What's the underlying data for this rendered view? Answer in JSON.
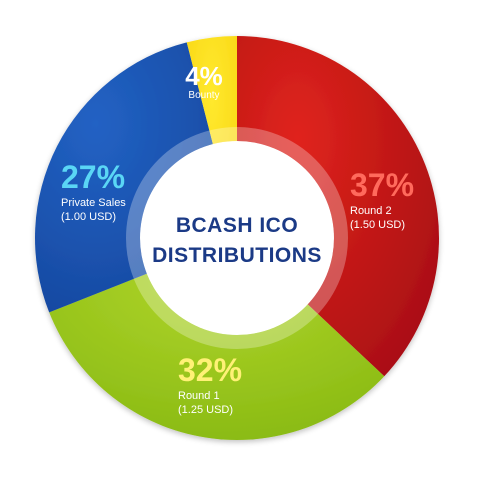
{
  "chart_data": {
    "type": "pie",
    "title": "BCASH ICO DISTRIBUTIONS",
    "title_lines": [
      "BCASH ICO",
      "DISTRIBUTIONS"
    ],
    "slices": [
      {
        "name": "Round 2",
        "value": 37,
        "percent_label": "37%",
        "sub_label": "(1.50 USD)",
        "color": "#c0131a",
        "pct_color": "#ff6a5c",
        "text_color": "#ffffff"
      },
      {
        "name": "Round 1",
        "value": 32,
        "percent_label": "32%",
        "sub_label": "(1.25 USD)",
        "color": "#95c81a",
        "pct_color": "#fff176",
        "text_color": "#ffffff"
      },
      {
        "name": "Private Sales",
        "value": 27,
        "percent_label": "27%",
        "sub_label": "(1.00 USD)",
        "color": "#1a52b2",
        "pct_color": "#5ad6f5",
        "text_color": "#ffffff"
      },
      {
        "name": "Bounty",
        "value": 4,
        "percent_label": "4%",
        "sub_label": "",
        "color": "#fde11a",
        "pct_color": "#ffffff",
        "text_color": "#ffffff"
      }
    ],
    "center_title_color": "#1b3a86",
    "donut": true
  }
}
